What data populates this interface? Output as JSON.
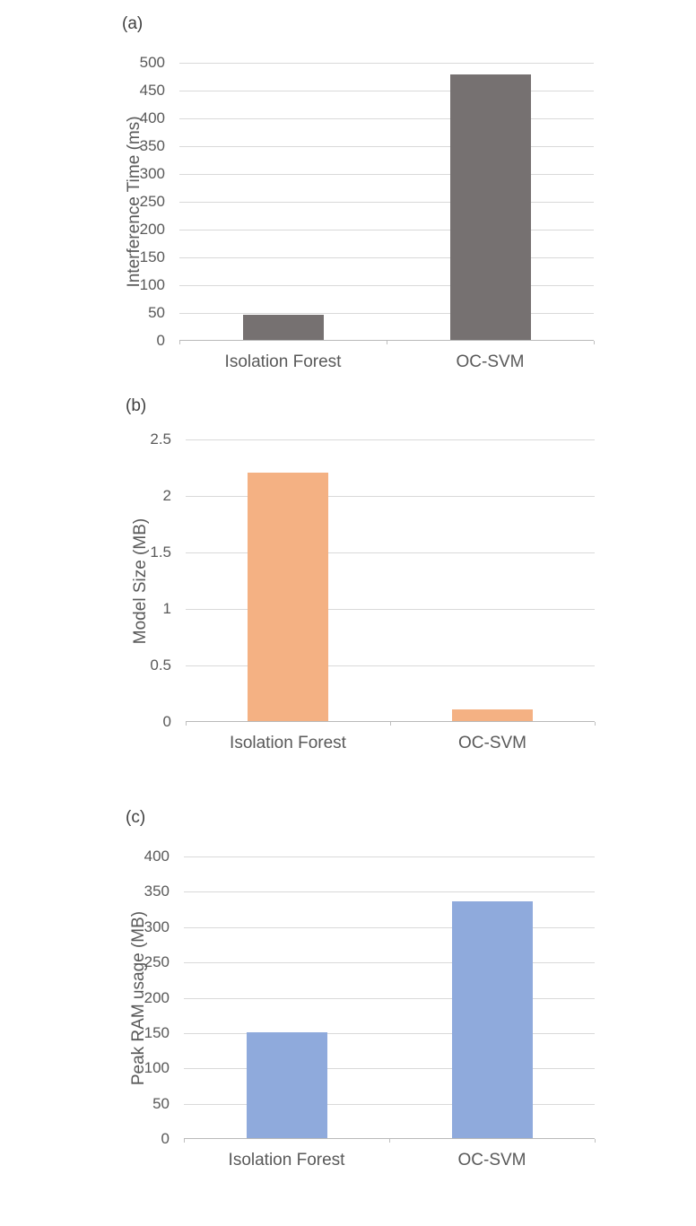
{
  "chart_data": [
    {
      "type": "bar",
      "panel_label": "(a)",
      "categories": [
        "Isolation Forest",
        "OC-SVM"
      ],
      "values": [
        45,
        478
      ],
      "title": "",
      "xlabel": "",
      "ylabel": "Interference Time (ms)",
      "ylim": [
        0,
        500
      ],
      "ytick_step": 50,
      "bar_color": "#767171",
      "grid": true,
      "legend": "none"
    },
    {
      "type": "bar",
      "panel_label": "(b)",
      "categories": [
        "Isolation Forest",
        "OC-SVM"
      ],
      "values": [
        2.2,
        0.1
      ],
      "title": "",
      "xlabel": "",
      "ylabel": "Model Size (MB)",
      "ylim": [
        0,
        2.5
      ],
      "ytick_step": 0.5,
      "bar_color": "#f4b183",
      "grid": true,
      "legend": "none"
    },
    {
      "type": "bar",
      "panel_label": "(c)",
      "categories": [
        "Isolation Forest",
        "OC-SVM"
      ],
      "values": [
        150,
        335
      ],
      "title": "",
      "xlabel": "",
      "ylabel": "Peak RAM usage (MB)",
      "ylim": [
        0,
        400
      ],
      "ytick_step": 50,
      "bar_color": "#8faadc",
      "grid": true,
      "legend": "none"
    }
  ]
}
